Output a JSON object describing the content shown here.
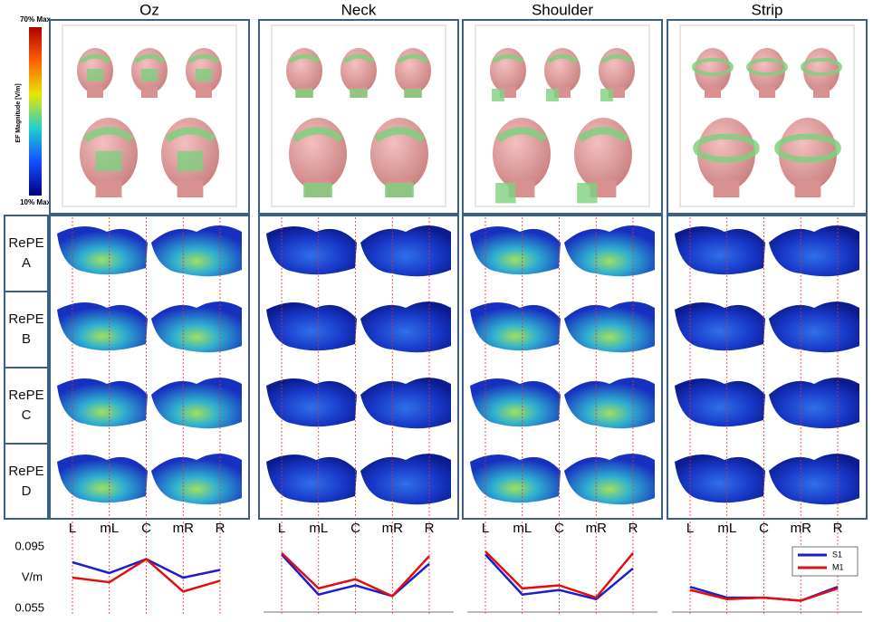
{
  "columns": [
    "Oz",
    "Neck",
    "Shoulder",
    "Strip"
  ],
  "rows": [
    "RePE A",
    "RePE B",
    "RePE C",
    "RePE D"
  ],
  "colorbar": {
    "max_label": "70% Max",
    "title": "EF Magnitude [V/m]",
    "min_label": "10% Max"
  },
  "chart_data": [
    {
      "type": "line",
      "categories": [
        "L",
        "mL",
        "C",
        "mR",
        "R"
      ],
      "ylim": [
        0.055,
        0.095
      ],
      "yticks": [
        0.055,
        0.095
      ],
      "ylabel": "V/m",
      "series": [
        {
          "name": "S1",
          "color": "#1c1cd0",
          "values": [
            0.085,
            0.078,
            0.087,
            0.075,
            0.08
          ]
        },
        {
          "name": "M1",
          "color": "#e01010",
          "values": [
            0.075,
            0.072,
            0.087,
            0.066,
            0.073
          ]
        }
      ]
    },
    {
      "type": "line",
      "categories": [
        "L",
        "mL",
        "C",
        "mR",
        "R"
      ],
      "ylim": [
        0.055,
        0.095
      ],
      "series": [
        {
          "name": "S1",
          "color": "#1c1cd0",
          "values": [
            0.09,
            0.064,
            0.07,
            0.063,
            0.084
          ]
        },
        {
          "name": "M1",
          "color": "#e01010",
          "values": [
            0.091,
            0.068,
            0.074,
            0.063,
            0.089
          ]
        }
      ]
    },
    {
      "type": "line",
      "categories": [
        "L",
        "mL",
        "C",
        "mR",
        "R"
      ],
      "ylim": [
        0.055,
        0.095
      ],
      "series": [
        {
          "name": "S1",
          "color": "#1c1cd0",
          "values": [
            0.09,
            0.064,
            0.067,
            0.061,
            0.081
          ]
        },
        {
          "name": "M1",
          "color": "#e01010",
          "values": [
            0.092,
            0.068,
            0.07,
            0.062,
            0.091
          ]
        }
      ]
    },
    {
      "type": "line",
      "categories": [
        "L",
        "mL",
        "C",
        "mR",
        "R"
      ],
      "ylim": [
        0.055,
        0.095
      ],
      "legend": "upper right",
      "series": [
        {
          "name": "S1",
          "color": "#1c1cd0",
          "values": [
            0.069,
            0.062,
            0.062,
            0.06,
            0.069
          ]
        },
        {
          "name": "M1",
          "color": "#e01010",
          "values": [
            0.067,
            0.061,
            0.062,
            0.06,
            0.068
          ]
        }
      ]
    }
  ]
}
